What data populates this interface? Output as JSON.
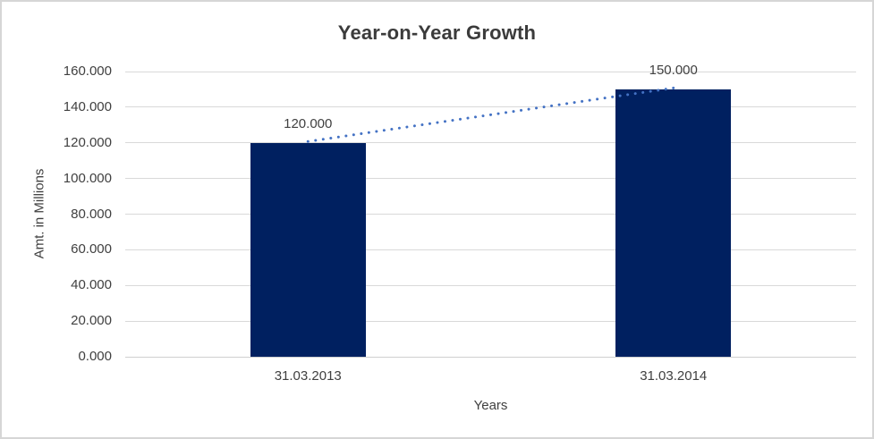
{
  "chart_data": {
    "type": "bar",
    "title": "Year-on-Year Growth",
    "xlabel": "Years",
    "ylabel": "Amt. in Millions",
    "categories": [
      "31.03.2013",
      "31.03.2014"
    ],
    "values": [
      120,
      150
    ],
    "value_labels": [
      "120.000",
      "150.000"
    ],
    "ylim": [
      0,
      160
    ],
    "ytick_step": 20,
    "ytick_values": [
      0,
      20,
      40,
      60,
      80,
      100,
      120,
      140,
      160
    ],
    "ytick_labels": [
      "0.000",
      "20.000",
      "40.000",
      "60.000",
      "80.000",
      "100.000",
      "120.000",
      "140.000",
      "160.000"
    ],
    "grid": true,
    "legend": "none",
    "trendline": {
      "style": "dotted",
      "from_value": 120,
      "to_value": 150
    },
    "colors": {
      "bar": "#002060",
      "trendline": "#4472C4",
      "gridline": "#D9D9D9",
      "axis_line": "#CFCFCF",
      "text": "#404040",
      "title_text": "#3B3B3B",
      "border": "#D6D6D6",
      "background": "#FFFFFF"
    }
  }
}
